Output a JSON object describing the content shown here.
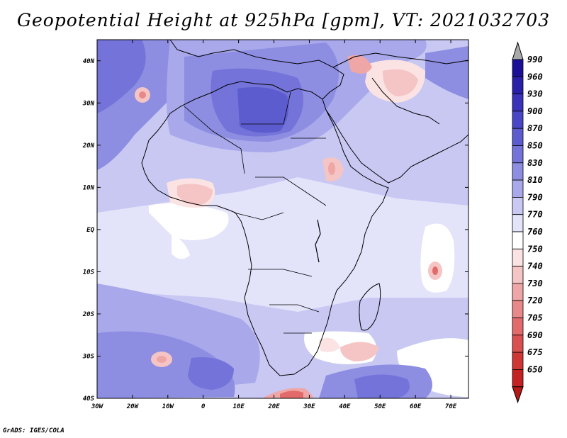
{
  "title": "Geopotential Height at 925hPa [gpm], VT: 2021032703",
  "footer": "GrADS: IGES/COLA",
  "map": {
    "projection": "latlon",
    "lon_range": [
      -30,
      75
    ],
    "lat_range": [
      -40,
      45
    ],
    "x_ticks": [
      {
        "lon": -30,
        "label": "30W"
      },
      {
        "lon": -20,
        "label": "20W"
      },
      {
        "lon": -10,
        "label": "10W"
      },
      {
        "lon": 0,
        "label": "0"
      },
      {
        "lon": 10,
        "label": "10E"
      },
      {
        "lon": 20,
        "label": "20E"
      },
      {
        "lon": 30,
        "label": "30E"
      },
      {
        "lon": 40,
        "label": "40E"
      },
      {
        "lon": 50,
        "label": "50E"
      },
      {
        "lon": 60,
        "label": "60E"
      },
      {
        "lon": 70,
        "label": "70E"
      }
    ],
    "y_ticks": [
      {
        "lat": 40,
        "label": "40N"
      },
      {
        "lat": 30,
        "label": "30N"
      },
      {
        "lat": 20,
        "label": "20N"
      },
      {
        "lat": 10,
        "label": "10N"
      },
      {
        "lat": 0,
        "label": "EQ"
      },
      {
        "lat": -10,
        "label": "10S"
      },
      {
        "lat": -20,
        "label": "20S"
      },
      {
        "lat": -30,
        "label": "30S"
      },
      {
        "lat": -40,
        "label": "40S"
      }
    ]
  },
  "colorbar": {
    "levels": [
      {
        "label": "990",
        "color": "#1a0f96"
      },
      {
        "label": "960",
        "color": "#2a1fa8"
      },
      {
        "label": "930",
        "color": "#3a32b8"
      },
      {
        "label": "900",
        "color": "#4a47c6"
      },
      {
        "label": "870",
        "color": "#5c5ccf"
      },
      {
        "label": "850",
        "color": "#7373d9"
      },
      {
        "label": "830",
        "color": "#8d8de2"
      },
      {
        "label": "810",
        "color": "#a8a8eb"
      },
      {
        "label": "790",
        "color": "#c8c8f3"
      },
      {
        "label": "770",
        "color": "#e3e3fa"
      },
      {
        "label": "760",
        "color": "#ffffff"
      },
      {
        "label": "750",
        "color": "#fbe3e3"
      },
      {
        "label": "740",
        "color": "#f5c4c4"
      },
      {
        "label": "730",
        "color": "#efa6a6"
      },
      {
        "label": "720",
        "color": "#e98888"
      },
      {
        "label": "705",
        "color": "#e26a6a"
      },
      {
        "label": "690",
        "color": "#da4f4f"
      },
      {
        "label": "675",
        "color": "#cf3636"
      },
      {
        "label": "650",
        "color": "#c42222"
      }
    ],
    "top_arrow_color": "#a9a9a9",
    "bottom_arrow_color": "#b81818"
  }
}
